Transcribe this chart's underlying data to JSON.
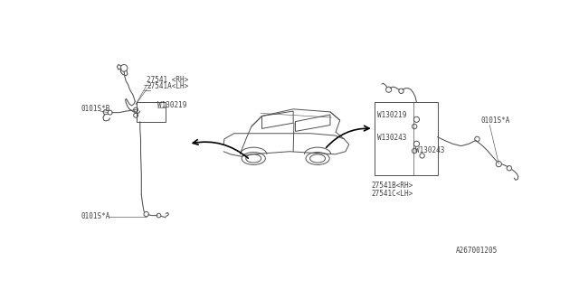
{
  "bg_color": "#ffffff",
  "line_color": "#505050",
  "text_color": "#404040",
  "fig_width": 6.4,
  "fig_height": 3.2,
  "dpi": 100,
  "part_number": "A267001205",
  "label_27541_rh": "27541 <RH>",
  "label_27541a_lh": "27541A<LH>",
  "label_w130219_left": "W130219",
  "label_0101s_b": "0101S*B",
  "label_0101s_a_left": "0101S*A",
  "label_w130219_right": "W130219",
  "label_w130243_1": "W130243",
  "label_w130243_2": "W130243",
  "label_27541b_rh": "27541B<RH>",
  "label_27541c_lh": "27541C<LH>",
  "label_0101s_a_right": "0101S*A"
}
